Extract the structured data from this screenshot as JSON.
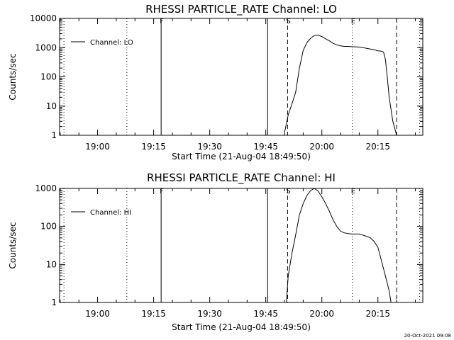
{
  "chart_data": [
    {
      "type": "line",
      "title": "RHESSI PARTICLE_RATE Channel: LO",
      "xlabel": "Start Time (21-Aug-04 18:49:50)",
      "ylabel": "Counts/sec",
      "yscale": "log",
      "ylim": [
        1,
        10000
      ],
      "xlim": [
        "18:49:50",
        "20:27:00"
      ],
      "yticks": [
        "1",
        "10",
        "100",
        "1000",
        "10000"
      ],
      "xticks": [
        "19:00",
        "19:15",
        "19:30",
        "19:45",
        "20:00",
        "20:15"
      ],
      "legend": {
        "position": "top-left",
        "entries": [
          "Channel: LO"
        ]
      },
      "series": [
        {
          "name": "Channel: LO",
          "x": [
            "19:50:00",
            "19:51:00",
            "19:52:00",
            "19:53:00",
            "19:54:00",
            "19:55:00",
            "19:56:00",
            "19:57:00",
            "19:58:00",
            "19:59:00",
            "20:00:00",
            "20:01:00",
            "20:02:00",
            "20:03:00",
            "20:04:00",
            "20:05:00",
            "20:06:00",
            "20:07:00",
            "20:08:00",
            "20:10:00",
            "20:12:00",
            "20:14:00",
            "20:15:00",
            "20:16:00",
            "20:16:30",
            "20:17:00",
            "20:17:30",
            "20:18:00",
            "20:19:00",
            "20:20:00"
          ],
          "y": [
            1.2,
            5,
            12,
            30,
            200,
            800,
            1500,
            2100,
            2600,
            2700,
            2400,
            2000,
            1700,
            1400,
            1250,
            1150,
            1100,
            1100,
            1080,
            1050,
            950,
            850,
            780,
            750,
            700,
            400,
            100,
            20,
            3,
            1
          ]
        }
      ],
      "vlines": [
        {
          "label": "",
          "time": "18:51:00",
          "style": "dotted"
        },
        {
          "label": "F",
          "time": "19:17:00",
          "style": "solid"
        },
        {
          "label": "",
          "time": "19:45:30",
          "style": "solid"
        },
        {
          "label": "S",
          "time": "19:50:50",
          "style": "dashed"
        },
        {
          "label": "E",
          "time": "20:08:10",
          "style": "dotted"
        },
        {
          "label": "",
          "time": "20:20:00",
          "style": "dashed"
        },
        {
          "label": "",
          "time": "20:26:10",
          "style": "dotted"
        },
        {
          "label": "",
          "time": "19:07:50",
          "style": "dotted"
        }
      ]
    },
    {
      "type": "line",
      "title": "RHESSI PARTICLE_RATE Channel: HI",
      "xlabel": "Start Time (21-Aug-04 18:49:50)",
      "ylabel": "Counts/sec",
      "yscale": "log",
      "ylim": [
        1,
        1000
      ],
      "xlim": [
        "18:49:50",
        "20:27:00"
      ],
      "yticks": [
        "1",
        "10",
        "100",
        "1000"
      ],
      "xticks": [
        "19:00",
        "19:15",
        "19:30",
        "19:45",
        "20:00",
        "20:15"
      ],
      "legend": {
        "position": "top-left",
        "entries": [
          "Channel: HI"
        ]
      },
      "series": [
        {
          "name": "Channel: HI",
          "x": [
            "19:50:30",
            "19:51:00",
            "19:52:00",
            "19:53:00",
            "19:54:00",
            "19:55:00",
            "19:56:00",
            "19:57:00",
            "19:58:00",
            "19:59:00",
            "20:00:00",
            "20:01:00",
            "20:02:00",
            "20:03:00",
            "20:04:00",
            "20:05:00",
            "20:06:00",
            "20:07:00",
            "20:08:00",
            "20:10:00",
            "20:12:00",
            "20:13:00",
            "20:14:00",
            "20:15:00",
            "20:16:00",
            "20:17:00",
            "20:18:00",
            "20:18:30"
          ],
          "y": [
            1,
            5,
            20,
            60,
            200,
            400,
            650,
            880,
            1000,
            850,
            600,
            400,
            250,
            150,
            100,
            75,
            68,
            65,
            63,
            63,
            55,
            50,
            40,
            28,
            12,
            5,
            2,
            1
          ]
        }
      ],
      "vlines": [
        {
          "label": "",
          "time": "18:51:00",
          "style": "dotted"
        },
        {
          "label": "F",
          "time": "19:17:00",
          "style": "solid"
        },
        {
          "label": "",
          "time": "19:45:30",
          "style": "solid"
        },
        {
          "label": "S",
          "time": "19:50:50",
          "style": "dashed"
        },
        {
          "label": "E",
          "time": "20:08:10",
          "style": "dotted"
        },
        {
          "label": "",
          "time": "20:20:00",
          "style": "dashed"
        },
        {
          "label": "",
          "time": "20:26:10",
          "style": "dotted"
        },
        {
          "label": "",
          "time": "19:07:50",
          "style": "dotted"
        }
      ]
    }
  ],
  "footer": {
    "timestamp": "20-Oct-2021 09:08"
  }
}
